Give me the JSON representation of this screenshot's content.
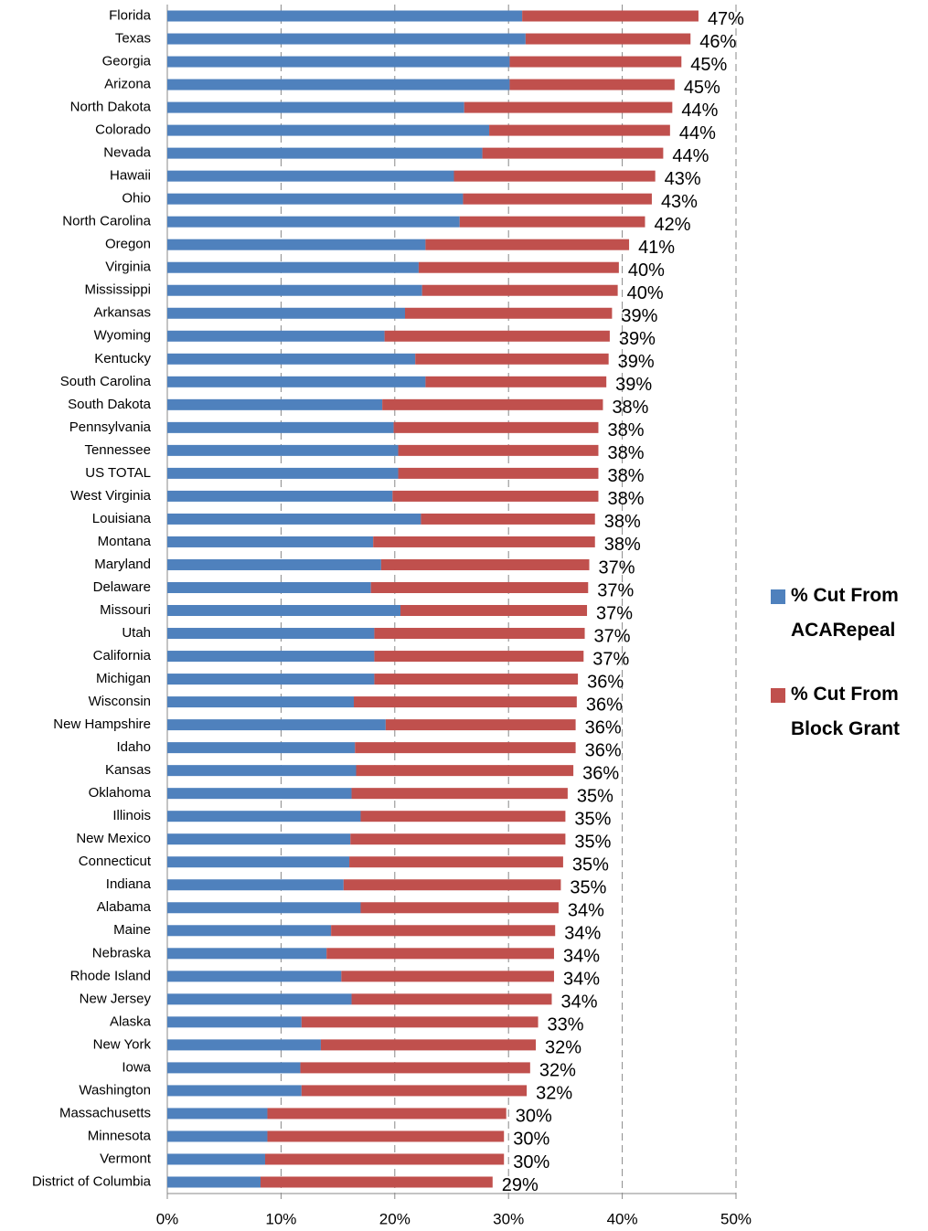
{
  "chart_data": {
    "type": "stacked-bar-horizontal",
    "categories": [
      "Florida",
      "Texas",
      "Georgia",
      "Arizona",
      "North Dakota",
      "Colorado",
      "Nevada",
      "Hawaii",
      "Ohio",
      "North Carolina",
      "Oregon",
      "Virginia",
      "Mississippi",
      "Arkansas",
      "Wyoming",
      "Kentucky",
      "South Carolina",
      "South Dakota",
      "Pennsylvania",
      "Tennessee",
      "US TOTAL",
      "West Virginia",
      "Louisiana",
      "Montana",
      "Maryland",
      "Delaware",
      "Missouri",
      "Utah",
      "California",
      "Michigan",
      "Wisconsin",
      "New Hampshire",
      "Idaho",
      "Kansas",
      "Oklahoma",
      "Illinois",
      "New Mexico",
      "Connecticut",
      "Indiana",
      "Alabama",
      "Maine",
      "Nebraska",
      "Rhode Island",
      "New Jersey",
      "Alaska",
      "New York",
      "Iowa",
      "Washington",
      "Massachusetts",
      "Minnesota",
      "Vermont",
      "District of Columbia"
    ],
    "series": [
      {
        "name": "% Cut From ACARepeal",
        "color": "#4f81bd",
        "values": [
          31.2,
          31.5,
          30.1,
          30.1,
          26.1,
          28.3,
          27.7,
          25.2,
          26.0,
          25.7,
          22.7,
          22.1,
          22.4,
          20.9,
          19.1,
          21.8,
          22.7,
          18.9,
          19.9,
          20.3,
          20.3,
          19.8,
          22.3,
          18.1,
          18.8,
          17.9,
          20.5,
          18.2,
          18.2,
          18.2,
          16.4,
          19.2,
          16.5,
          16.6,
          16.2,
          17.0,
          16.1,
          16.0,
          15.5,
          17.0,
          14.4,
          14.0,
          15.3,
          16.2,
          11.8,
          13.5,
          11.7,
          11.8,
          8.8,
          8.8,
          8.6,
          8.2
        ]
      },
      {
        "name": "% Cut From Block Grant",
        "color": "#c0504d",
        "values": [
          15.5,
          14.5,
          15.1,
          14.5,
          18.3,
          15.9,
          15.9,
          17.7,
          16.6,
          16.3,
          17.9,
          17.6,
          17.2,
          18.2,
          19.8,
          17.0,
          15.9,
          19.4,
          18.0,
          17.6,
          17.6,
          18.1,
          15.3,
          19.5,
          18.3,
          19.1,
          16.4,
          18.5,
          18.4,
          17.9,
          19.6,
          16.7,
          19.4,
          19.1,
          19.0,
          18.0,
          18.9,
          18.8,
          19.1,
          17.4,
          19.7,
          20.0,
          18.7,
          17.6,
          20.8,
          18.9,
          20.2,
          19.8,
          21.0,
          20.8,
          21.0,
          20.4
        ]
      }
    ],
    "total_labels": [
      "47%",
      "46%",
      "45%",
      "45%",
      "44%",
      "44%",
      "44%",
      "43%",
      "43%",
      "42%",
      "41%",
      "40%",
      "40%",
      "39%",
      "39%",
      "39%",
      "39%",
      "38%",
      "38%",
      "38%",
      "38%",
      "38%",
      "38%",
      "38%",
      "37%",
      "37%",
      "37%",
      "37%",
      "37%",
      "36%",
      "36%",
      "36%",
      "36%",
      "36%",
      "35%",
      "35%",
      "35%",
      "35%",
      "35%",
      "34%",
      "34%",
      "34%",
      "34%",
      "34%",
      "33%",
      "32%",
      "32%",
      "32%",
      "30%",
      "30%",
      "30%",
      "29%"
    ],
    "xlim": [
      0,
      50
    ],
    "xticks": [
      {
        "value": 0,
        "label": "0%"
      },
      {
        "value": 10,
        "label": "10%"
      },
      {
        "value": 20,
        "label": "20%"
      },
      {
        "value": 30,
        "label": "30%"
      },
      {
        "value": 40,
        "label": "40%"
      },
      {
        "value": 50,
        "label": "50%"
      }
    ],
    "grid": true,
    "legend": "right"
  }
}
